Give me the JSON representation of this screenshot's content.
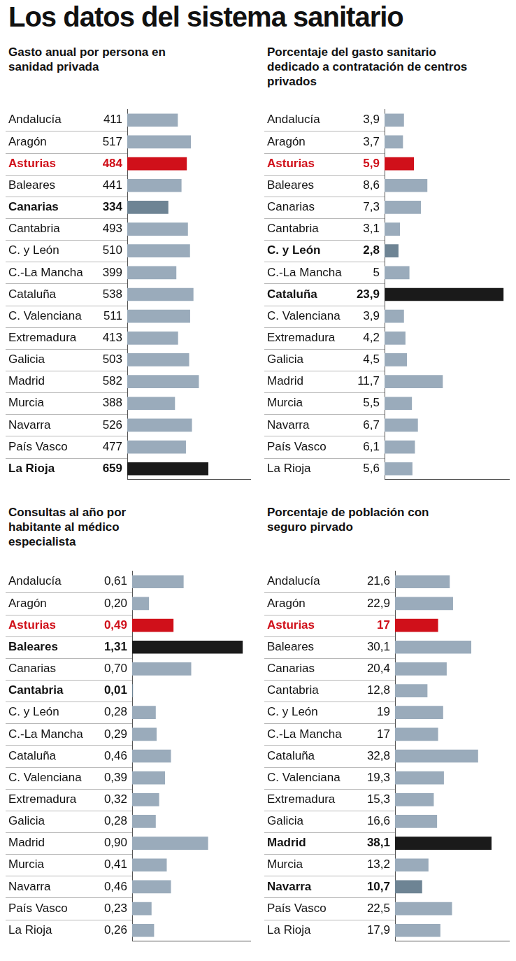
{
  "title": "Los datos del sistema sanitario",
  "chart_data": [
    {
      "type": "bar",
      "orientation": "horizontal",
      "title": "Gasto anual por persona en sanidad privada",
      "categories": [
        "Andalucía",
        "Aragón",
        "Asturias",
        "Baleares",
        "Canarias",
        "Cantabria",
        "C. y León",
        "C.-La Mancha",
        "Cataluña",
        "C. Valenciana",
        "Extremadura",
        "Galicia",
        "Madrid",
        "Murcia",
        "Navarra",
        "País Vasco",
        "La Rioja"
      ],
      "values": [
        411,
        517,
        484,
        441,
        334,
        493,
        510,
        399,
        538,
        511,
        413,
        503,
        582,
        388,
        526,
        477,
        659
      ],
      "colors": [
        "#9aabbb",
        "#9aabbb",
        "#d0101a",
        "#9aabbb",
        "#6e8494",
        "#9aabbb",
        "#9aabbb",
        "#9aabbb",
        "#9aabbb",
        "#9aabbb",
        "#9aabbb",
        "#9aabbb",
        "#9aabbb",
        "#9aabbb",
        "#9aabbb",
        "#9aabbb",
        "#1a1a1a"
      ],
      "xlim": [
        0,
        1000
      ],
      "tick_labels": "y",
      "grid": false,
      "data_labels": true
    },
    {
      "type": "bar",
      "orientation": "horizontal",
      "title": "Porcentaje del gasto sanitario dedicado a contratación de centros privados",
      "categories": [
        "Andalucía",
        "Aragón",
        "Asturias",
        "Baleares",
        "Canarias",
        "Cantabria",
        "C. y León",
        "C.-La Mancha",
        "Cataluña",
        "C. Valenciana",
        "Extremadura",
        "Galicia",
        "Madrid",
        "Murcia",
        "Navarra",
        "País Vasco",
        "La Rioja"
      ],
      "values": [
        3.9,
        3.7,
        5.9,
        8.6,
        7.3,
        3.1,
        2.8,
        5,
        23.9,
        3.9,
        4.2,
        4.5,
        11.7,
        5.5,
        6.7,
        6.1,
        5.6
      ],
      "value_labels": [
        "3,9",
        "3,7",
        "5,9",
        "8,6",
        "7,3",
        "3,1",
        "2,8",
        "5",
        "23,9",
        "3,9",
        "4,2",
        "4,5",
        "11,7",
        "5,5",
        "6,7",
        "6,1",
        "5,6"
      ],
      "colors": [
        "#9aabbb",
        "#9aabbb",
        "#d0101a",
        "#9aabbb",
        "#9aabbb",
        "#9aabbb",
        "#6e8494",
        "#9aabbb",
        "#1a1a1a",
        "#9aabbb",
        "#9aabbb",
        "#9aabbb",
        "#9aabbb",
        "#9aabbb",
        "#9aabbb",
        "#9aabbb",
        "#9aabbb"
      ],
      "xlim": [
        0,
        25
      ],
      "tick_labels": "y",
      "grid": false,
      "data_labels": true
    },
    {
      "type": "bar",
      "orientation": "horizontal",
      "title": "Consultas al año por habitante al médico especialista",
      "categories": [
        "Andalucía",
        "Aragón",
        "Asturias",
        "Baleares",
        "Canarias",
        "Cantabria",
        "C. y León",
        "C.-La Mancha",
        "Cataluña",
        "C. Valenciana",
        "Extremadura",
        "Galicia",
        "Madrid",
        "Murcia",
        "Navarra",
        "País Vasco",
        "La Rioja"
      ],
      "values": [
        0.61,
        0.2,
        0.49,
        1.31,
        0.7,
        0.01,
        0.28,
        0.29,
        0.46,
        0.39,
        0.32,
        0.28,
        0.9,
        0.41,
        0.46,
        0.23,
        0.26
      ],
      "value_labels": [
        "0,61",
        "0,20",
        "0,49",
        "1,31",
        "0,70",
        "0,01",
        "0,28",
        "0,29",
        "0,46",
        "0,39",
        "0,32",
        "0,28",
        "0,90",
        "0,41",
        "0,46",
        "0,23",
        "0,26"
      ],
      "colors": [
        "#9aabbb",
        "#9aabbb",
        "#d0101a",
        "#1a1a1a",
        "#9aabbb",
        "#6e8494",
        "#9aabbb",
        "#9aabbb",
        "#9aabbb",
        "#9aabbb",
        "#9aabbb",
        "#9aabbb",
        "#9aabbb",
        "#9aabbb",
        "#9aabbb",
        "#9aabbb",
        "#9aabbb"
      ],
      "xlim": [
        0,
        1.4
      ],
      "tick_labels": "y",
      "grid": false,
      "data_labels": true
    },
    {
      "type": "bar",
      "orientation": "horizontal",
      "title": "Porcentaje de población con seguro pirvado",
      "categories": [
        "Andalucía",
        "Aragón",
        "Asturias",
        "Baleares",
        "Canarias",
        "Cantabria",
        "C. y León",
        "C.-La Mancha",
        "Cataluña",
        "C. Valenciana",
        "Extremadura",
        "Galicia",
        "Madrid",
        "Murcia",
        "Navarra",
        "País Vasco",
        "La Rioja"
      ],
      "values": [
        21.6,
        22.9,
        17,
        30.1,
        20.4,
        12.8,
        19,
        17,
        32.8,
        19.3,
        15.3,
        16.6,
        38.1,
        13.2,
        10.7,
        22.5,
        17.9
      ],
      "value_labels": [
        "21,6",
        "22,9",
        "17",
        "30,1",
        "20,4",
        "12,8",
        "19",
        "17",
        "32,8",
        "19,3",
        "15,3",
        "16,6",
        "38,1",
        "13,2",
        "10,7",
        "22,5",
        "17,9"
      ],
      "colors": [
        "#9aabbb",
        "#9aabbb",
        "#d0101a",
        "#9aabbb",
        "#9aabbb",
        "#9aabbb",
        "#9aabbb",
        "#9aabbb",
        "#9aabbb",
        "#9aabbb",
        "#9aabbb",
        "#9aabbb",
        "#1a1a1a",
        "#9aabbb",
        "#6e8494",
        "#9aabbb",
        "#9aabbb"
      ],
      "xlim": [
        0,
        45
      ],
      "tick_labels": "y",
      "grid": false,
      "data_labels": true
    }
  ]
}
